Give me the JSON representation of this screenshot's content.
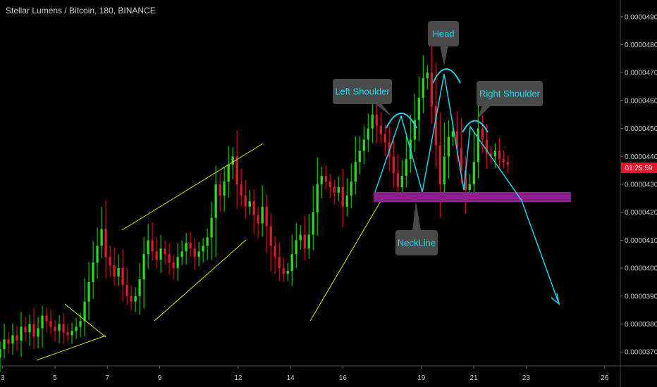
{
  "header": {
    "title": "Stellar Lumens / Bitcoin, 180, BINANCE"
  },
  "current_price_label": "01:25:59",
  "colors": {
    "up": "#22e01c",
    "down": "#e8142b",
    "trendline": "#e1e11a",
    "pattern": "#1fd3e6",
    "neckline_zone": "#8c1f8c",
    "callout_bg": "#4a4a4a",
    "callout_text": "#20d8ec",
    "price_tag": "#e8142b"
  },
  "annotations": {
    "left_shoulder": "Left Shoulder",
    "head": "Head",
    "right_shoulder": "Right Shoulder",
    "neckline": "NeckLine"
  },
  "chart_data": {
    "type": "candlestick",
    "title": "Stellar Lumens / Bitcoin, 180, BINANCE",
    "x_tick_labels": [
      "3",
      "5",
      "7",
      "9",
      "12",
      "14",
      "16",
      "19",
      "21",
      "23",
      "26"
    ],
    "y_tick_labels": [
      "0.00003700",
      "0.00003800",
      "0.00003900",
      "0.00004000",
      "0.00004100",
      "0.00004200",
      "0.00004300",
      "0.00004400",
      "0.00004500",
      "0.00004600",
      "0.00004700",
      "0.00004800",
      "0.00004900"
    ],
    "ylim": [
      3.65e-05,
      4.96e-05
    ],
    "xlim_days": [
      2.9,
      26.6
    ],
    "grid": false,
    "closes": [
      3.71e-05,
      3.745e-05,
      3.73e-05,
      3.76e-05,
      3.74e-05,
      3.79e-05,
      3.77e-05,
      3.8e-05,
      3.755e-05,
      3.785e-05,
      3.83e-05,
      3.81e-05,
      3.79e-05,
      3.775e-05,
      3.8e-05,
      3.77e-05,
      3.76e-05,
      3.775e-05,
      3.79e-05,
      3.81e-05,
      3.88e-05,
      3.95e-05,
      4.02e-05,
      4.08e-05,
      4.14e-05,
      4.04e-05,
      4.01e-05,
      3.97e-05,
      4e-05,
      3.94e-05,
      3.9e-05,
      3.88e-05,
      3.9e-05,
      3.96e-05,
      4.05e-05,
      4.1e-05,
      4.06e-05,
      4.03e-05,
      4.07e-05,
      4.05e-05,
      4.02e-05,
      4e-05,
      4.04e-05,
      4.06e-05,
      4.09e-05,
      4.07e-05,
      4.04e-05,
      4.06e-05,
      4.08e-05,
      4.11e-05,
      4.18e-05,
      4.3e-05,
      4.26e-05,
      4.31e-05,
      4.37e-05,
      4.4e-05,
      4.3e-05,
      4.26e-05,
      4.22e-05,
      4.24e-05,
      4.19e-05,
      4.16e-05,
      4.22e-05,
      4.15e-05,
      4.08e-05,
      4.04e-05,
      4e-05,
      3.98e-05,
      3.99e-05,
      4.05e-05,
      4.1e-05,
      4.12e-05,
      4.07e-05,
      4.12e-05,
      4.2e-05,
      4.3e-05,
      4.33e-05,
      4.31e-05,
      4.29e-05,
      4.27e-05,
      4.29e-05,
      4.22e-05,
      4.26e-05,
      4.31e-05,
      4.38e-05,
      4.42e-05,
      4.46e-05,
      4.5e-05,
      4.55e-05,
      4.51e-05,
      4.48e-05,
      4.45e-05,
      4.4e-05,
      4.34e-05,
      4.29e-05,
      4.33e-05,
      4.39e-05,
      4.46e-05,
      4.53e-05,
      4.61e-05,
      4.68e-05,
      4.7e-05,
      4.58e-05,
      4.44e-05,
      4.3e-05,
      4.4e-05,
      4.47e-05,
      4.49e-05,
      4.43e-05,
      4.35e-05,
      4.28e-05,
      4.3e-05,
      4.38e-05,
      4.5e-05,
      4.46e-05,
      4.41e-05,
      4.4e-05,
      4.42e-05,
      4.39e-05,
      4.38e-05,
      4.37e-05
    ]
  }
}
